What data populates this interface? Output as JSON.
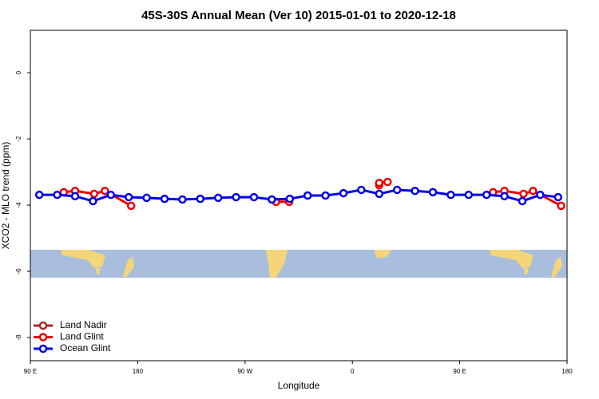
{
  "chart_data": {
    "type": "line",
    "title": "45S-30S Annual Mean (Ver 10)   2015-01-01 to 2020-12-18",
    "x_label": "Longitude",
    "y_label": "XCO2 - MLO trend (ppm)",
    "xlim": [
      90,
      540
    ],
    "ylim": [
      -8.7,
      1.28
    ],
    "xticks": [
      {
        "value": 90,
        "label": "90 E"
      },
      {
        "value": 180,
        "label": "180"
      },
      {
        "value": 270,
        "label": "90 W"
      },
      {
        "value": 360,
        "label": "0"
      },
      {
        "value": 450,
        "label": "90 E"
      },
      {
        "value": 540,
        "label": "180"
      }
    ],
    "yticks": [
      0,
      -2,
      -4,
      -6,
      -8
    ],
    "legend": "bottom-left",
    "series": [
      {
        "name": "Land Nadir",
        "color": "#a52a2a",
        "x": [],
        "values": []
      },
      {
        "name": "Land Glint",
        "color": "#ee0000",
        "x": [
          118,
          127.5,
          143.5,
          152.5,
          174.5,
          null,
          296,
          307,
          null,
          382.5,
          382.5,
          389.5,
          null,
          478,
          487.5,
          503.5,
          511.5,
          535
        ],
        "values": [
          -3.61,
          -3.57,
          -3.66,
          -3.57,
          -4.02,
          null,
          -3.9,
          -3.9,
          null,
          -3.4,
          -3.33,
          -3.3,
          null,
          -3.61,
          -3.57,
          -3.66,
          -3.57,
          -4.02
        ]
      },
      {
        "name": "Ocean Glint",
        "color": "#0000ee",
        "x": [
          97.5,
          112.5,
          127.5,
          142.5,
          157.5,
          172.5,
          187.5,
          202.5,
          217.5,
          232.5,
          247.5,
          262.5,
          277.5,
          292.5,
          307.5,
          322.5,
          337.5,
          352.5,
          367.5,
          382.5,
          397.5,
          412.5,
          427.5,
          442.5,
          457.5,
          472.5,
          487.5,
          502.5,
          517.5,
          532.5
        ],
        "values": [
          -3.69,
          -3.69,
          -3.73,
          -3.88,
          -3.69,
          -3.76,
          -3.78,
          -3.81,
          -3.83,
          -3.81,
          -3.78,
          -3.76,
          -3.76,
          -3.83,
          -3.81,
          -3.71,
          -3.71,
          -3.64,
          -3.54,
          -3.66,
          -3.54,
          -3.57,
          -3.61,
          -3.69,
          -3.69,
          -3.69,
          -3.73,
          -3.88,
          -3.69,
          -3.76
        ]
      }
    ]
  }
}
